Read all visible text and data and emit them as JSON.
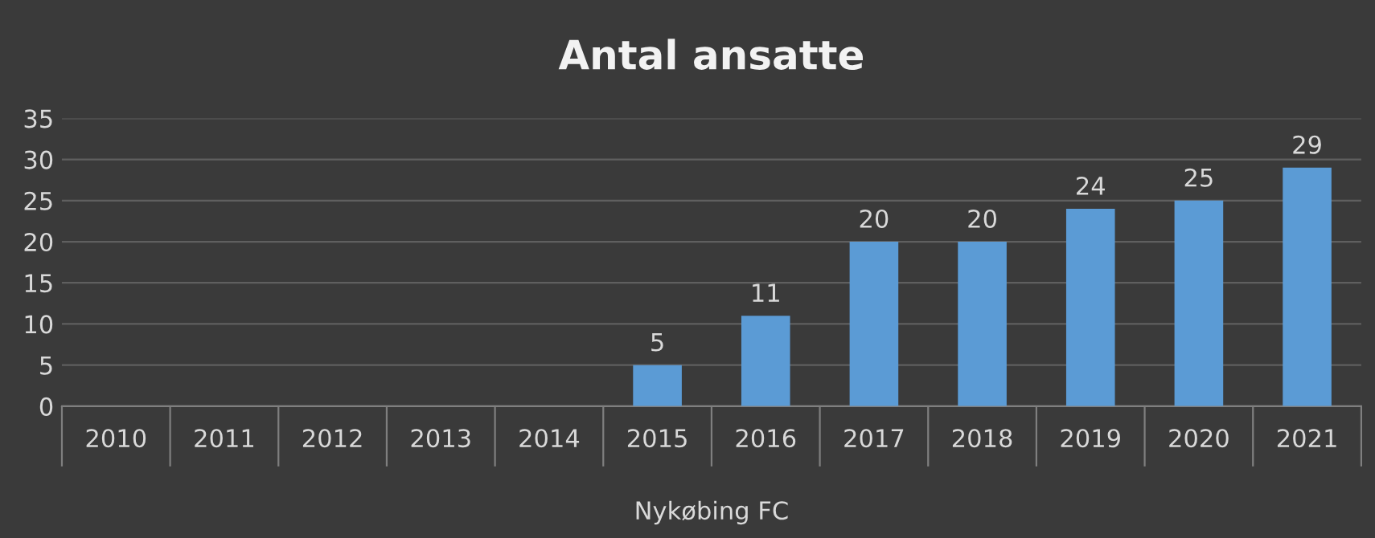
{
  "chart_data": {
    "type": "bar",
    "title": "Antal ansatte",
    "xlabel": "Nykøbing FC",
    "categories": [
      "2010",
      "2011",
      "2012",
      "2013",
      "2014",
      "2015",
      "2016",
      "2017",
      "2018",
      "2019",
      "2020",
      "2021"
    ],
    "values": [
      null,
      null,
      null,
      null,
      null,
      5,
      11,
      20,
      20,
      24,
      25,
      29
    ],
    "color": "#5b9bd5",
    "data_labels": true,
    "ylim": [
      0,
      35
    ],
    "yticks": [
      0,
      5,
      10,
      15,
      20,
      25,
      30,
      35
    ],
    "grid": "y",
    "legend": false
  }
}
